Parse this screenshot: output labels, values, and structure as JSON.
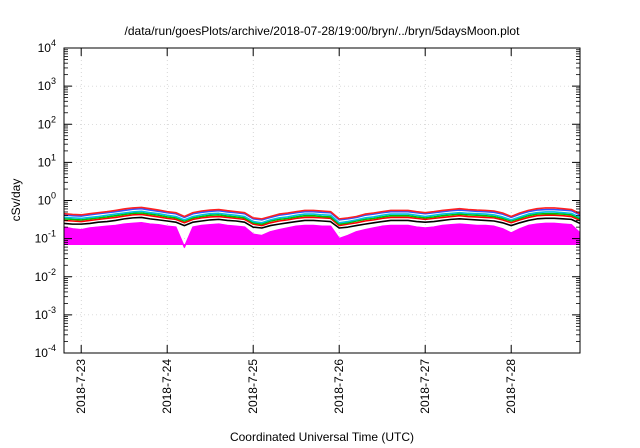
{
  "chart_data": {
    "type": "area",
    "title": "/data/run/goesPlots/archive/2018-07-28/19:00/bryn/../bryn/5daysMoon.plot",
    "xlabel": "Coordinated Universal Time (UTC)",
    "ylabel": "cSv/day",
    "y_scale": "log",
    "ylim": [
      0.0001,
      10000
    ],
    "y_ticks": [
      {
        "value": 10000,
        "base": "10",
        "exp": "4"
      },
      {
        "value": 1000,
        "base": "10",
        "exp": "3"
      },
      {
        "value": 100,
        "base": "10",
        "exp": "2"
      },
      {
        "value": 10,
        "base": "10",
        "exp": "1"
      },
      {
        "value": 1,
        "base": "10",
        "exp": "0"
      },
      {
        "value": 0.1,
        "base": "10",
        "exp": "-1"
      },
      {
        "value": 0.01,
        "base": "10",
        "exp": "-2"
      },
      {
        "value": 0.001,
        "base": "10",
        "exp": "-3"
      },
      {
        "value": 0.0001,
        "base": "10",
        "exp": "-4"
      }
    ],
    "xlim": [
      -0.2,
      5.8
    ],
    "x_ticks": [
      {
        "value": 0,
        "label": "2018-7-23"
      },
      {
        "value": 1,
        "label": "2018-7-24"
      },
      {
        "value": 2,
        "label": "2018-7-25"
      },
      {
        "value": 3,
        "label": "2018-7-26"
      },
      {
        "value": 4,
        "label": "2018-7-27"
      },
      {
        "value": 5,
        "label": "2018-7-28"
      }
    ],
    "grid": true,
    "legend": "none",
    "x": [
      -0.2,
      -0.1,
      0.0,
      0.1,
      0.2,
      0.3,
      0.4,
      0.5,
      0.6,
      0.7,
      0.8,
      0.9,
      1.0,
      1.1,
      1.2,
      1.3,
      1.4,
      1.5,
      1.6,
      1.7,
      1.8,
      1.9,
      2.0,
      2.1,
      2.2,
      2.3,
      2.4,
      2.5,
      2.6,
      2.7,
      2.8,
      2.9,
      3.0,
      3.1,
      3.2,
      3.3,
      3.4,
      3.5,
      3.6,
      3.7,
      3.8,
      3.9,
      4.0,
      4.1,
      4.2,
      4.3,
      4.4,
      4.5,
      4.6,
      4.7,
      4.8,
      4.9,
      5.0,
      5.1,
      5.2,
      5.3,
      5.4,
      5.5,
      5.6,
      5.7,
      5.8
    ],
    "series": [
      {
        "color": "#ff00ff",
        "fill": true,
        "values": [
          0.2,
          0.18,
          0.17,
          0.19,
          0.2,
          0.21,
          0.22,
          0.24,
          0.25,
          0.26,
          0.24,
          0.23,
          0.21,
          0.2,
          0.06,
          0.2,
          0.22,
          0.23,
          0.24,
          0.22,
          0.21,
          0.2,
          0.13,
          0.12,
          0.15,
          0.17,
          0.19,
          0.21,
          0.22,
          0.22,
          0.21,
          0.21,
          0.1,
          0.12,
          0.15,
          0.17,
          0.19,
          0.21,
          0.22,
          0.22,
          0.22,
          0.2,
          0.19,
          0.2,
          0.22,
          0.23,
          0.24,
          0.23,
          0.22,
          0.22,
          0.21,
          0.18,
          0.14,
          0.18,
          0.22,
          0.24,
          0.25,
          0.25,
          0.24,
          0.23,
          0.14
        ]
      },
      {
        "color": "#000000",
        "fill": false,
        "values": [
          0.25,
          0.24,
          0.24,
          0.25,
          0.27,
          0.28,
          0.3,
          0.33,
          0.35,
          0.36,
          0.33,
          0.31,
          0.29,
          0.27,
          0.22,
          0.27,
          0.29,
          0.31,
          0.32,
          0.3,
          0.29,
          0.27,
          0.2,
          0.19,
          0.22,
          0.24,
          0.26,
          0.28,
          0.3,
          0.3,
          0.29,
          0.28,
          0.19,
          0.2,
          0.22,
          0.24,
          0.26,
          0.28,
          0.3,
          0.3,
          0.3,
          0.28,
          0.27,
          0.28,
          0.3,
          0.32,
          0.33,
          0.32,
          0.31,
          0.3,
          0.29,
          0.26,
          0.22,
          0.26,
          0.3,
          0.33,
          0.34,
          0.34,
          0.33,
          0.32,
          0.25
        ]
      },
      {
        "color": "#ff0000",
        "fill": false,
        "values": [
          0.3,
          0.29,
          0.28,
          0.3,
          0.32,
          0.34,
          0.36,
          0.39,
          0.42,
          0.43,
          0.4,
          0.37,
          0.34,
          0.32,
          0.26,
          0.32,
          0.35,
          0.37,
          0.38,
          0.36,
          0.34,
          0.32,
          0.24,
          0.22,
          0.26,
          0.29,
          0.31,
          0.34,
          0.36,
          0.36,
          0.35,
          0.34,
          0.22,
          0.24,
          0.26,
          0.29,
          0.31,
          0.34,
          0.36,
          0.36,
          0.36,
          0.34,
          0.32,
          0.34,
          0.36,
          0.38,
          0.4,
          0.38,
          0.37,
          0.36,
          0.35,
          0.31,
          0.26,
          0.31,
          0.36,
          0.4,
          0.41,
          0.41,
          0.4,
          0.38,
          0.3
        ]
      },
      {
        "color": "#00c000",
        "fill": false,
        "values": [
          0.33,
          0.32,
          0.31,
          0.33,
          0.35,
          0.37,
          0.4,
          0.43,
          0.46,
          0.47,
          0.44,
          0.41,
          0.37,
          0.35,
          0.29,
          0.35,
          0.38,
          0.41,
          0.42,
          0.39,
          0.37,
          0.35,
          0.26,
          0.24,
          0.29,
          0.32,
          0.34,
          0.37,
          0.4,
          0.4,
          0.38,
          0.37,
          0.24,
          0.26,
          0.29,
          0.32,
          0.34,
          0.37,
          0.4,
          0.4,
          0.4,
          0.37,
          0.35,
          0.37,
          0.4,
          0.42,
          0.44,
          0.42,
          0.41,
          0.4,
          0.38,
          0.34,
          0.29,
          0.34,
          0.4,
          0.44,
          0.45,
          0.45,
          0.44,
          0.42,
          0.33
        ]
      },
      {
        "color": "#00c0e0",
        "fill": false,
        "values": [
          0.36,
          0.35,
          0.34,
          0.36,
          0.38,
          0.41,
          0.44,
          0.47,
          0.5,
          0.52,
          0.48,
          0.45,
          0.41,
          0.38,
          0.31,
          0.38,
          0.42,
          0.45,
          0.46,
          0.43,
          0.41,
          0.38,
          0.28,
          0.26,
          0.31,
          0.35,
          0.37,
          0.41,
          0.44,
          0.44,
          0.42,
          0.41,
          0.26,
          0.28,
          0.31,
          0.35,
          0.37,
          0.41,
          0.44,
          0.44,
          0.44,
          0.41,
          0.38,
          0.41,
          0.44,
          0.46,
          0.48,
          0.46,
          0.45,
          0.44,
          0.42,
          0.37,
          0.31,
          0.37,
          0.44,
          0.48,
          0.5,
          0.5,
          0.48,
          0.46,
          0.36
        ]
      },
      {
        "color": "#3050ff",
        "fill": false,
        "values": [
          0.42,
          0.4,
          0.39,
          0.42,
          0.45,
          0.48,
          0.51,
          0.55,
          0.59,
          0.61,
          0.56,
          0.52,
          0.48,
          0.45,
          0.36,
          0.45,
          0.49,
          0.52,
          0.54,
          0.5,
          0.48,
          0.45,
          0.33,
          0.31,
          0.36,
          0.41,
          0.44,
          0.48,
          0.51,
          0.51,
          0.49,
          0.48,
          0.31,
          0.33,
          0.36,
          0.41,
          0.44,
          0.48,
          0.51,
          0.51,
          0.51,
          0.48,
          0.45,
          0.48,
          0.51,
          0.54,
          0.56,
          0.54,
          0.52,
          0.51,
          0.49,
          0.44,
          0.36,
          0.44,
          0.51,
          0.56,
          0.58,
          0.58,
          0.56,
          0.54,
          0.42
        ]
      },
      {
        "color": "#ff2020",
        "fill": false,
        "values": [
          0.45,
          0.43,
          0.42,
          0.45,
          0.48,
          0.51,
          0.55,
          0.6,
          0.64,
          0.66,
          0.61,
          0.56,
          0.51,
          0.48,
          0.38,
          0.48,
          0.53,
          0.56,
          0.58,
          0.54,
          0.51,
          0.48,
          0.35,
          0.33,
          0.38,
          0.44,
          0.47,
          0.51,
          0.55,
          0.55,
          0.53,
          0.51,
          0.33,
          0.35,
          0.38,
          0.44,
          0.47,
          0.51,
          0.55,
          0.55,
          0.55,
          0.51,
          0.48,
          0.51,
          0.55,
          0.58,
          0.61,
          0.58,
          0.56,
          0.55,
          0.53,
          0.47,
          0.38,
          0.47,
          0.55,
          0.61,
          0.64,
          0.64,
          0.61,
          0.58,
          0.45
        ]
      }
    ]
  }
}
